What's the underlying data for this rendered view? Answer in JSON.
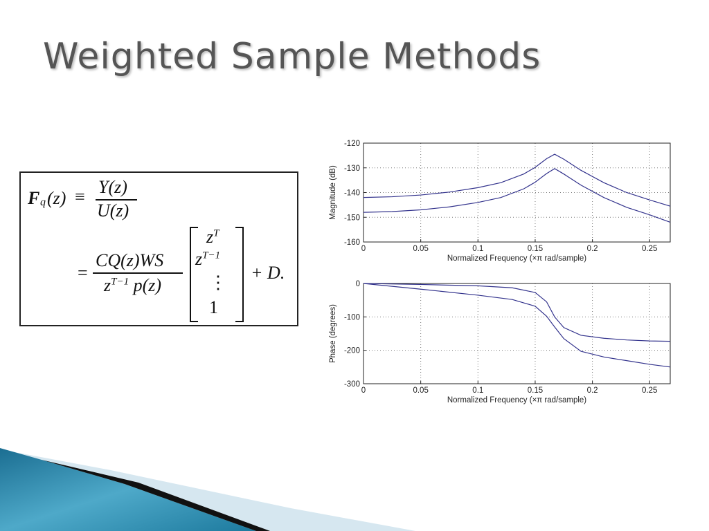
{
  "title": "Weighted Sample Methods",
  "equation": {
    "lhs_F": "F",
    "lhs_sub": "q",
    "lhs_arg": "(z)",
    "equiv": "≡",
    "num1": "Y(z)",
    "den1": "U(z)",
    "eq": "=",
    "num2": "CQ(z)WS",
    "den2_base": "z",
    "den2_exp": "T−1",
    "den2_rest": "p(z)",
    "vector": [
      {
        "base": "z",
        "exp": "T"
      },
      {
        "base": "z",
        "exp": "T−1"
      },
      {
        "base": "⋮"
      },
      {
        "base": "1"
      }
    ],
    "tail": "+ D."
  },
  "chart_data": [
    {
      "type": "line",
      "ylabel": "Magnitude (dB)",
      "xlabel": "Normalized Frequency  (×π rad/sample)",
      "x": [
        0,
        0.025,
        0.05,
        0.075,
        0.1,
        0.12,
        0.14,
        0.15,
        0.16,
        0.167,
        0.175,
        0.19,
        0.21,
        0.23,
        0.25,
        0.268
      ],
      "series": [
        {
          "color": "#32328c",
          "values": [
            -142,
            -141.7,
            -141,
            -139.8,
            -138,
            -136,
            -132.5,
            -129.8,
            -126.3,
            -124.5,
            -126.5,
            -131,
            -136,
            -140,
            -143,
            -145.5
          ]
        },
        {
          "color": "#32328c",
          "values": [
            -148,
            -147.7,
            -147,
            -145.8,
            -144,
            -142,
            -138.5,
            -135.8,
            -132.3,
            -130.3,
            -132.5,
            -137,
            -142,
            -146,
            -149,
            -152
          ]
        }
      ],
      "xlim": [
        0,
        0.268
      ],
      "xticks": [
        0,
        0.05,
        0.1,
        0.15,
        0.2,
        0.25
      ],
      "ylim": [
        -160,
        -120
      ],
      "yticks": [
        -160,
        -150,
        -140,
        -130,
        -120
      ],
      "grid": true
    },
    {
      "type": "line",
      "ylabel": "Phase (degrees)",
      "xlabel": "Normalized Frequency  (×π rad/sample)",
      "x": [
        0,
        0.05,
        0.1,
        0.13,
        0.15,
        0.16,
        0.167,
        0.175,
        0.19,
        0.21,
        0.23,
        0.25,
        0.268
      ],
      "series": [
        {
          "color": "#32328c",
          "values": [
            0,
            -3,
            -7,
            -13,
            -27,
            -55,
            -100,
            -132,
            -155,
            -164,
            -169,
            -172,
            -173
          ]
        },
        {
          "color": "#32328c",
          "values": [
            0,
            -17,
            -35,
            -48,
            -68,
            -98,
            -130,
            -165,
            -203,
            -220,
            -231,
            -242,
            -250
          ]
        }
      ],
      "xlim": [
        0,
        0.268
      ],
      "xticks": [
        0,
        0.05,
        0.1,
        0.15,
        0.2,
        0.25
      ],
      "ylim": [
        -300,
        0
      ],
      "yticks": [
        -300,
        -200,
        -100,
        0
      ],
      "grid": true
    }
  ]
}
